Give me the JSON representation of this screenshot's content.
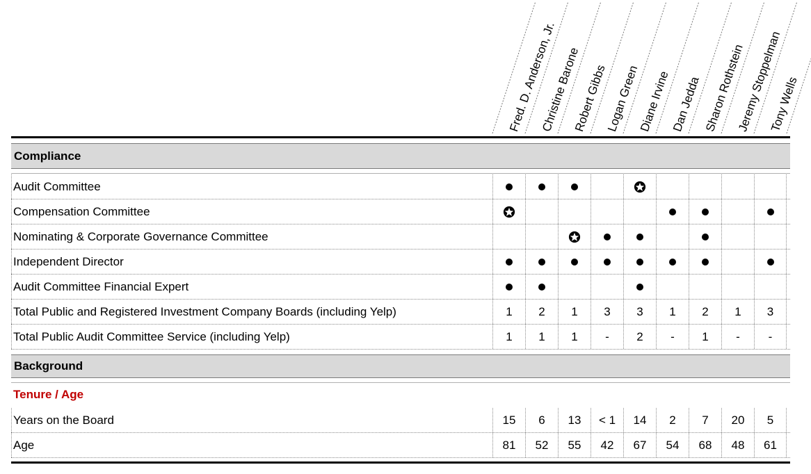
{
  "directors": [
    "Fred. D. Anderson, Jr.",
    "Christine Barone",
    "Robert Gibbs",
    "Logan Green",
    "Diane Irvine",
    "Dan Jedda",
    "Sharon Rothstein",
    "Jeremy Stoppelman",
    "Tony Wells"
  ],
  "compliance": {
    "title": "Compliance",
    "rows": [
      {
        "label": "Audit Committee",
        "cells": [
          "dot",
          "dot",
          "dot",
          "",
          "chair",
          "",
          "",
          "",
          ""
        ]
      },
      {
        "label": "Compensation Committee",
        "cells": [
          "chair",
          "",
          "",
          "",
          "",
          "dot",
          "dot",
          "",
          "dot"
        ]
      },
      {
        "label": "Nominating & Corporate Governance Committee",
        "cells": [
          "",
          "",
          "chair",
          "dot",
          "dot",
          "",
          "dot",
          "",
          ""
        ]
      },
      {
        "label": "Independent Director",
        "cells": [
          "dot",
          "dot",
          "dot",
          "dot",
          "dot",
          "dot",
          "dot",
          "",
          "dot"
        ]
      },
      {
        "label": "Audit Committee Financial Expert",
        "cells": [
          "dot",
          "dot",
          "",
          "",
          "dot",
          "",
          "",
          "",
          ""
        ]
      },
      {
        "label": "Total Public and Registered Investment Company Boards (including Yelp)",
        "cells": [
          "1",
          "2",
          "1",
          "3",
          "3",
          "1",
          "2",
          "1",
          "3"
        ]
      },
      {
        "label": "Total Public Audit Committee Service (including Yelp)",
        "cells": [
          "1",
          "1",
          "1",
          "-",
          "2",
          "-",
          "1",
          "-",
          "-"
        ]
      }
    ]
  },
  "background": {
    "title": "Background",
    "subtitle": "Tenure / Age",
    "rows": [
      {
        "label": "Years on the Board",
        "cells": [
          "15",
          "6",
          "13",
          "< 1",
          "14",
          "2",
          "7",
          "20",
          "5"
        ]
      },
      {
        "label": "Age",
        "cells": [
          "81",
          "52",
          "55",
          "42",
          "67",
          "54",
          "68",
          "48",
          "61"
        ]
      }
    ]
  },
  "legend_icons": {
    "dot": "member-dot-icon",
    "chair": "chair-star-icon"
  },
  "colors": {
    "band": "#d9d9d9",
    "accent": "#c00000"
  }
}
